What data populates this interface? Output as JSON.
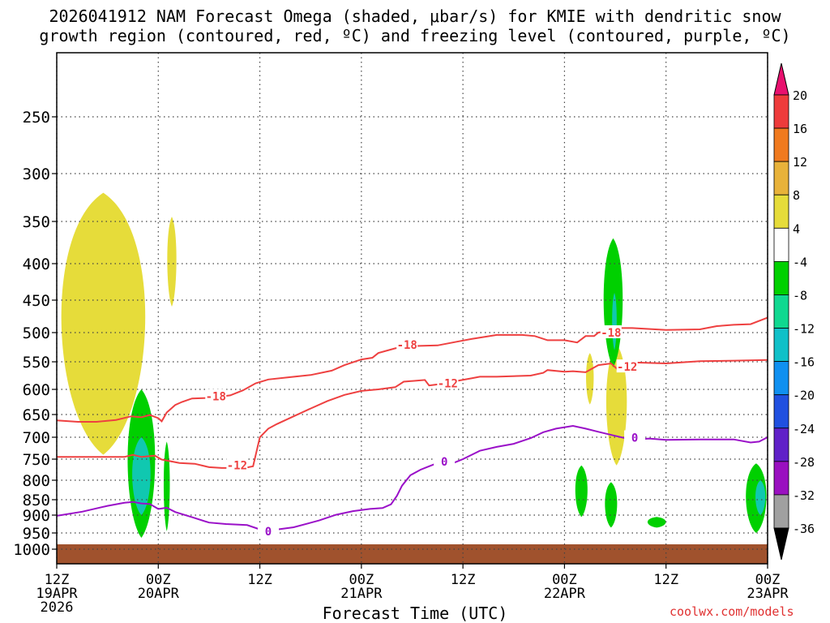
{
  "title_line1": "2026041912 NAM Forecast Omega (shaded, μbar/s) for KMIE with dendritic snow",
  "title_line2": "growth region (contoured, red, ºC) and freezing level (contoured, purple, ºC)",
  "credit": "coolwx.com/models",
  "chart_data": {
    "type": "contour",
    "xlabel": "Forecast Time (UTC)",
    "x_ticks": [
      {
        "hour": 0,
        "lines": [
          "12Z",
          "19APR",
          "2026"
        ]
      },
      {
        "hour": 12,
        "lines": [
          "00Z",
          "20APR"
        ]
      },
      {
        "hour": 24,
        "lines": [
          "12Z"
        ]
      },
      {
        "hour": 36,
        "lines": [
          "00Z",
          "21APR"
        ]
      },
      {
        "hour": 48,
        "lines": [
          "12Z"
        ]
      },
      {
        "hour": 60,
        "lines": [
          "00Z",
          "22APR"
        ]
      },
      {
        "hour": 72,
        "lines": [
          "12Z"
        ]
      },
      {
        "hour": 84,
        "lines": [
          "00Z",
          "23APR"
        ]
      }
    ],
    "x_range_hours": [
      0,
      84
    ],
    "y_axis": "pressure (mb)",
    "y_ticks": [
      250,
      300,
      350,
      400,
      450,
      500,
      550,
      600,
      650,
      700,
      750,
      800,
      850,
      900,
      950,
      1000
    ],
    "y_range": [
      1040,
      190
    ],
    "grid": true,
    "colorbar": {
      "labels": [
        "20",
        "16",
        "12",
        "8",
        "4",
        "-4",
        "-8",
        "-12",
        "-16",
        "-20",
        "-24",
        "-28",
        "-32",
        "-36"
      ],
      "colors": [
        "#e8106e",
        "#ee3b3b",
        "#f07a1e",
        "#e8b23a",
        "#e6dc3a",
        "#ffffff",
        "#00d000",
        "#10d890",
        "#10c0c8",
        "#1090f0",
        "#2050e0",
        "#6020c8",
        "#9a10c0",
        "#a0a0a0",
        "#000000"
      ]
    },
    "contours": [
      {
        "label": "-18",
        "color": "#ee4040",
        "label_at": [
          {
            "h": 18.8,
            "p": 614
          },
          {
            "h": 41.4,
            "p": 521
          },
          {
            "h": 65.5,
            "p": 500
          }
        ],
        "points": [
          [
            0,
            663
          ],
          [
            2.5,
            666
          ],
          [
            4.7,
            666
          ],
          [
            7,
            662
          ],
          [
            8.8,
            654
          ],
          [
            10,
            656
          ],
          [
            11,
            651
          ],
          [
            12,
            658
          ],
          [
            12.4,
            665
          ],
          [
            13,
            646
          ],
          [
            14,
            631
          ],
          [
            14.8,
            625
          ],
          [
            16,
            618
          ],
          [
            18,
            617
          ],
          [
            20.5,
            612
          ],
          [
            22,
            602
          ],
          [
            23.5,
            589
          ],
          [
            25,
            582
          ],
          [
            27.5,
            578
          ],
          [
            30,
            574
          ],
          [
            32.5,
            566
          ],
          [
            34,
            556
          ],
          [
            36,
            546
          ],
          [
            37.3,
            543
          ],
          [
            38,
            535
          ],
          [
            40,
            527
          ],
          [
            42,
            523
          ],
          [
            45,
            522
          ],
          [
            47.5,
            515
          ],
          [
            49,
            511
          ],
          [
            52,
            504
          ],
          [
            55,
            504
          ],
          [
            56.5,
            506
          ],
          [
            58,
            513
          ],
          [
            60,
            513
          ],
          [
            61.5,
            517
          ],
          [
            62.5,
            506
          ],
          [
            63.5,
            506
          ],
          [
            64,
            500
          ],
          [
            65,
            498
          ],
          [
            66,
            493
          ],
          [
            68,
            493
          ],
          [
            72,
            496
          ],
          [
            76,
            495
          ],
          [
            78,
            490
          ],
          [
            80,
            488
          ],
          [
            82,
            487
          ],
          [
            84,
            477
          ]
        ]
      },
      {
        "label": "-12",
        "color": "#ee4040",
        "label_at": [
          {
            "h": 21.3,
            "p": 764
          },
          {
            "h": 46.2,
            "p": 589
          },
          {
            "h": 67.4,
            "p": 559
          }
        ],
        "points": [
          [
            0,
            745
          ],
          [
            5.5,
            745
          ],
          [
            8,
            745
          ],
          [
            9,
            740
          ],
          [
            10,
            745
          ],
          [
            11.6,
            742
          ],
          [
            12.4,
            751
          ],
          [
            14.5,
            759
          ],
          [
            16.3,
            761
          ],
          [
            18,
            769
          ],
          [
            19.5,
            771
          ],
          [
            22.2,
            771
          ],
          [
            23.2,
            767
          ],
          [
            24,
            700
          ],
          [
            25,
            681
          ],
          [
            26,
            671
          ],
          [
            28,
            654
          ],
          [
            30,
            638
          ],
          [
            32,
            623
          ],
          [
            34,
            611
          ],
          [
            36,
            603
          ],
          [
            38,
            600
          ],
          [
            40,
            596
          ],
          [
            41,
            586
          ],
          [
            43.5,
            583
          ],
          [
            44,
            593
          ],
          [
            45,
            591
          ],
          [
            49,
            580
          ],
          [
            50,
            577
          ],
          [
            52,
            577
          ],
          [
            56,
            575
          ],
          [
            57.5,
            570
          ],
          [
            58,
            565
          ],
          [
            60,
            568
          ],
          [
            61,
            567
          ],
          [
            62.5,
            569
          ],
          [
            64,
            556
          ],
          [
            65.5,
            553
          ],
          [
            66.5,
            567
          ],
          [
            68,
            551
          ],
          [
            72,
            553
          ],
          [
            76,
            549
          ],
          [
            80,
            548
          ],
          [
            84,
            547
          ]
        ]
      },
      {
        "label": "0",
        "color": "#9a10c8",
        "label_at": [
          {
            "h": 25,
            "p": 945
          },
          {
            "h": 45.8,
            "p": 756
          },
          {
            "h": 68.3,
            "p": 701
          }
        ],
        "points": [
          [
            0,
            902
          ],
          [
            3,
            889
          ],
          [
            6,
            870
          ],
          [
            8,
            860
          ],
          [
            9,
            857
          ],
          [
            10,
            862
          ],
          [
            11,
            864
          ],
          [
            12,
            880
          ],
          [
            13,
            876
          ],
          [
            14,
            890
          ],
          [
            16,
            906
          ],
          [
            18,
            921
          ],
          [
            20,
            925
          ],
          [
            22.5,
            928
          ],
          [
            24,
            940
          ],
          [
            25.5,
            942
          ],
          [
            28,
            934
          ],
          [
            31,
            915
          ],
          [
            33,
            899
          ],
          [
            35,
            887
          ],
          [
            37,
            880
          ],
          [
            38.5,
            877
          ],
          [
            39.5,
            865
          ],
          [
            40.2,
            840
          ],
          [
            40.8,
            814
          ],
          [
            41.8,
            788
          ],
          [
            43,
            775
          ],
          [
            44,
            767
          ],
          [
            45,
            759
          ],
          [
            47,
            758
          ],
          [
            48,
            750
          ],
          [
            50,
            731
          ],
          [
            52,
            722
          ],
          [
            54,
            715
          ],
          [
            56,
            702
          ],
          [
            57.5,
            689
          ],
          [
            59,
            681
          ],
          [
            61,
            675
          ],
          [
            62.5,
            681
          ],
          [
            64,
            688
          ],
          [
            66,
            697
          ],
          [
            68,
            706
          ],
          [
            70,
            703
          ],
          [
            72,
            706
          ],
          [
            76,
            705
          ],
          [
            80,
            705
          ],
          [
            82,
            712
          ],
          [
            83,
            710
          ],
          [
            84,
            700
          ]
        ]
      }
    ],
    "shaded_regions": [
      {
        "value_range": "4 to 8",
        "hours": [
          0,
          11
        ],
        "p": [
          320,
          740
        ]
      },
      {
        "value_range": "4 to 8",
        "hours": [
          13,
          14.2
        ],
        "p": [
          345,
          460
        ]
      },
      {
        "value_range": "4 to 8",
        "hours": [
          62.5,
          63.5
        ],
        "p": [
          535,
          630
        ]
      },
      {
        "value_range": "4 to 8",
        "hours": [
          64.8,
          67.5
        ],
        "p": [
          520,
          765
        ]
      },
      {
        "value_range": "-8 to -4",
        "hours": [
          8.2,
          11.8
        ],
        "p": [
          600,
          965
        ]
      },
      {
        "value_range": "-8 to -4",
        "hours": [
          12.6,
          13.4
        ],
        "p": [
          710,
          945
        ]
      },
      {
        "value_range": "-8 to -4",
        "hours": [
          64.5,
          67
        ],
        "p": [
          370,
          560
        ]
      },
      {
        "value_range": "-8 to -4",
        "hours": [
          61.2,
          62.8
        ],
        "p": [
          765,
          905
        ]
      },
      {
        "value_range": "-8 to -4",
        "hours": [
          64.7,
          66.3
        ],
        "p": [
          805,
          935
        ]
      },
      {
        "value_range": "-8 to -4",
        "hours": [
          69.7,
          72.1
        ],
        "p": [
          905,
          935
        ]
      },
      {
        "value_range": "-8 to -4",
        "hours": [
          81.3,
          84
        ],
        "p": [
          760,
          950
        ]
      },
      {
        "value_range": "-16 to -8",
        "hours": [
          8.8,
          11.2
        ],
        "p": [
          700,
          900
        ]
      },
      {
        "value_range": "-16 to -8",
        "hours": [
          65.6,
          66.2
        ],
        "p": [
          440,
          530
        ]
      },
      {
        "value_range": "-16 to -8",
        "hours": [
          82.5,
          83.8
        ],
        "p": [
          800,
          900
        ]
      }
    ],
    "terrain": {
      "color": "#a0522d",
      "surface_p": 985
    }
  }
}
